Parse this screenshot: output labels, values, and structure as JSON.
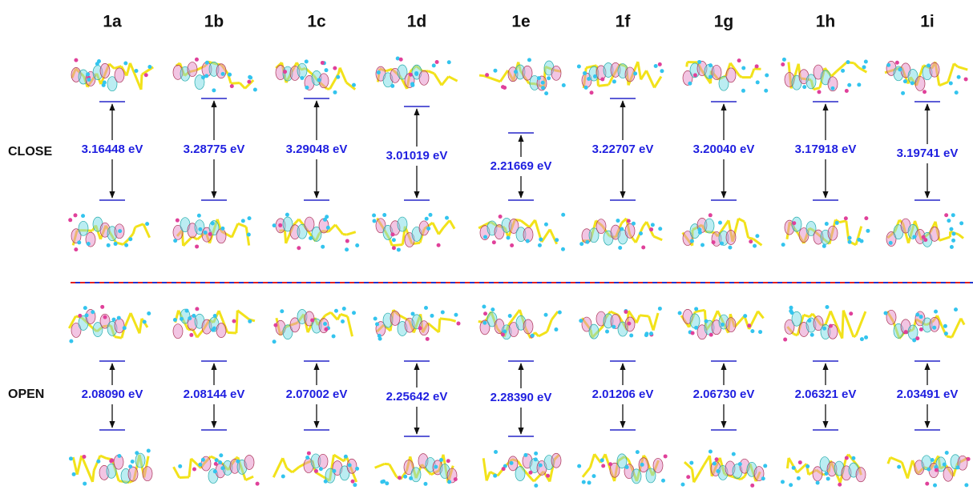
{
  "columns": [
    "1a",
    "1b",
    "1c",
    "1d",
    "1e",
    "1f",
    "1g",
    "1h",
    "1i"
  ],
  "rows": [
    {
      "label": "CLOSE",
      "gaps": [
        "3.16448 eV",
        "3.28775 eV",
        "3.29048 eV",
        "3.01019 eV",
        "2.21669 eV",
        "3.22707 eV",
        "3.20040 eV",
        "3.17918 eV",
        "3.19741 eV"
      ]
    },
    {
      "label": "OPEN",
      "gaps": [
        "2.08090 eV",
        "2.08144 eV",
        "2.07002 eV",
        "2.25642 eV",
        "2.28390 eV",
        "2.01206 eV",
        "2.06730 eV",
        "2.06321 eV",
        "2.03491 eV"
      ]
    }
  ]
}
